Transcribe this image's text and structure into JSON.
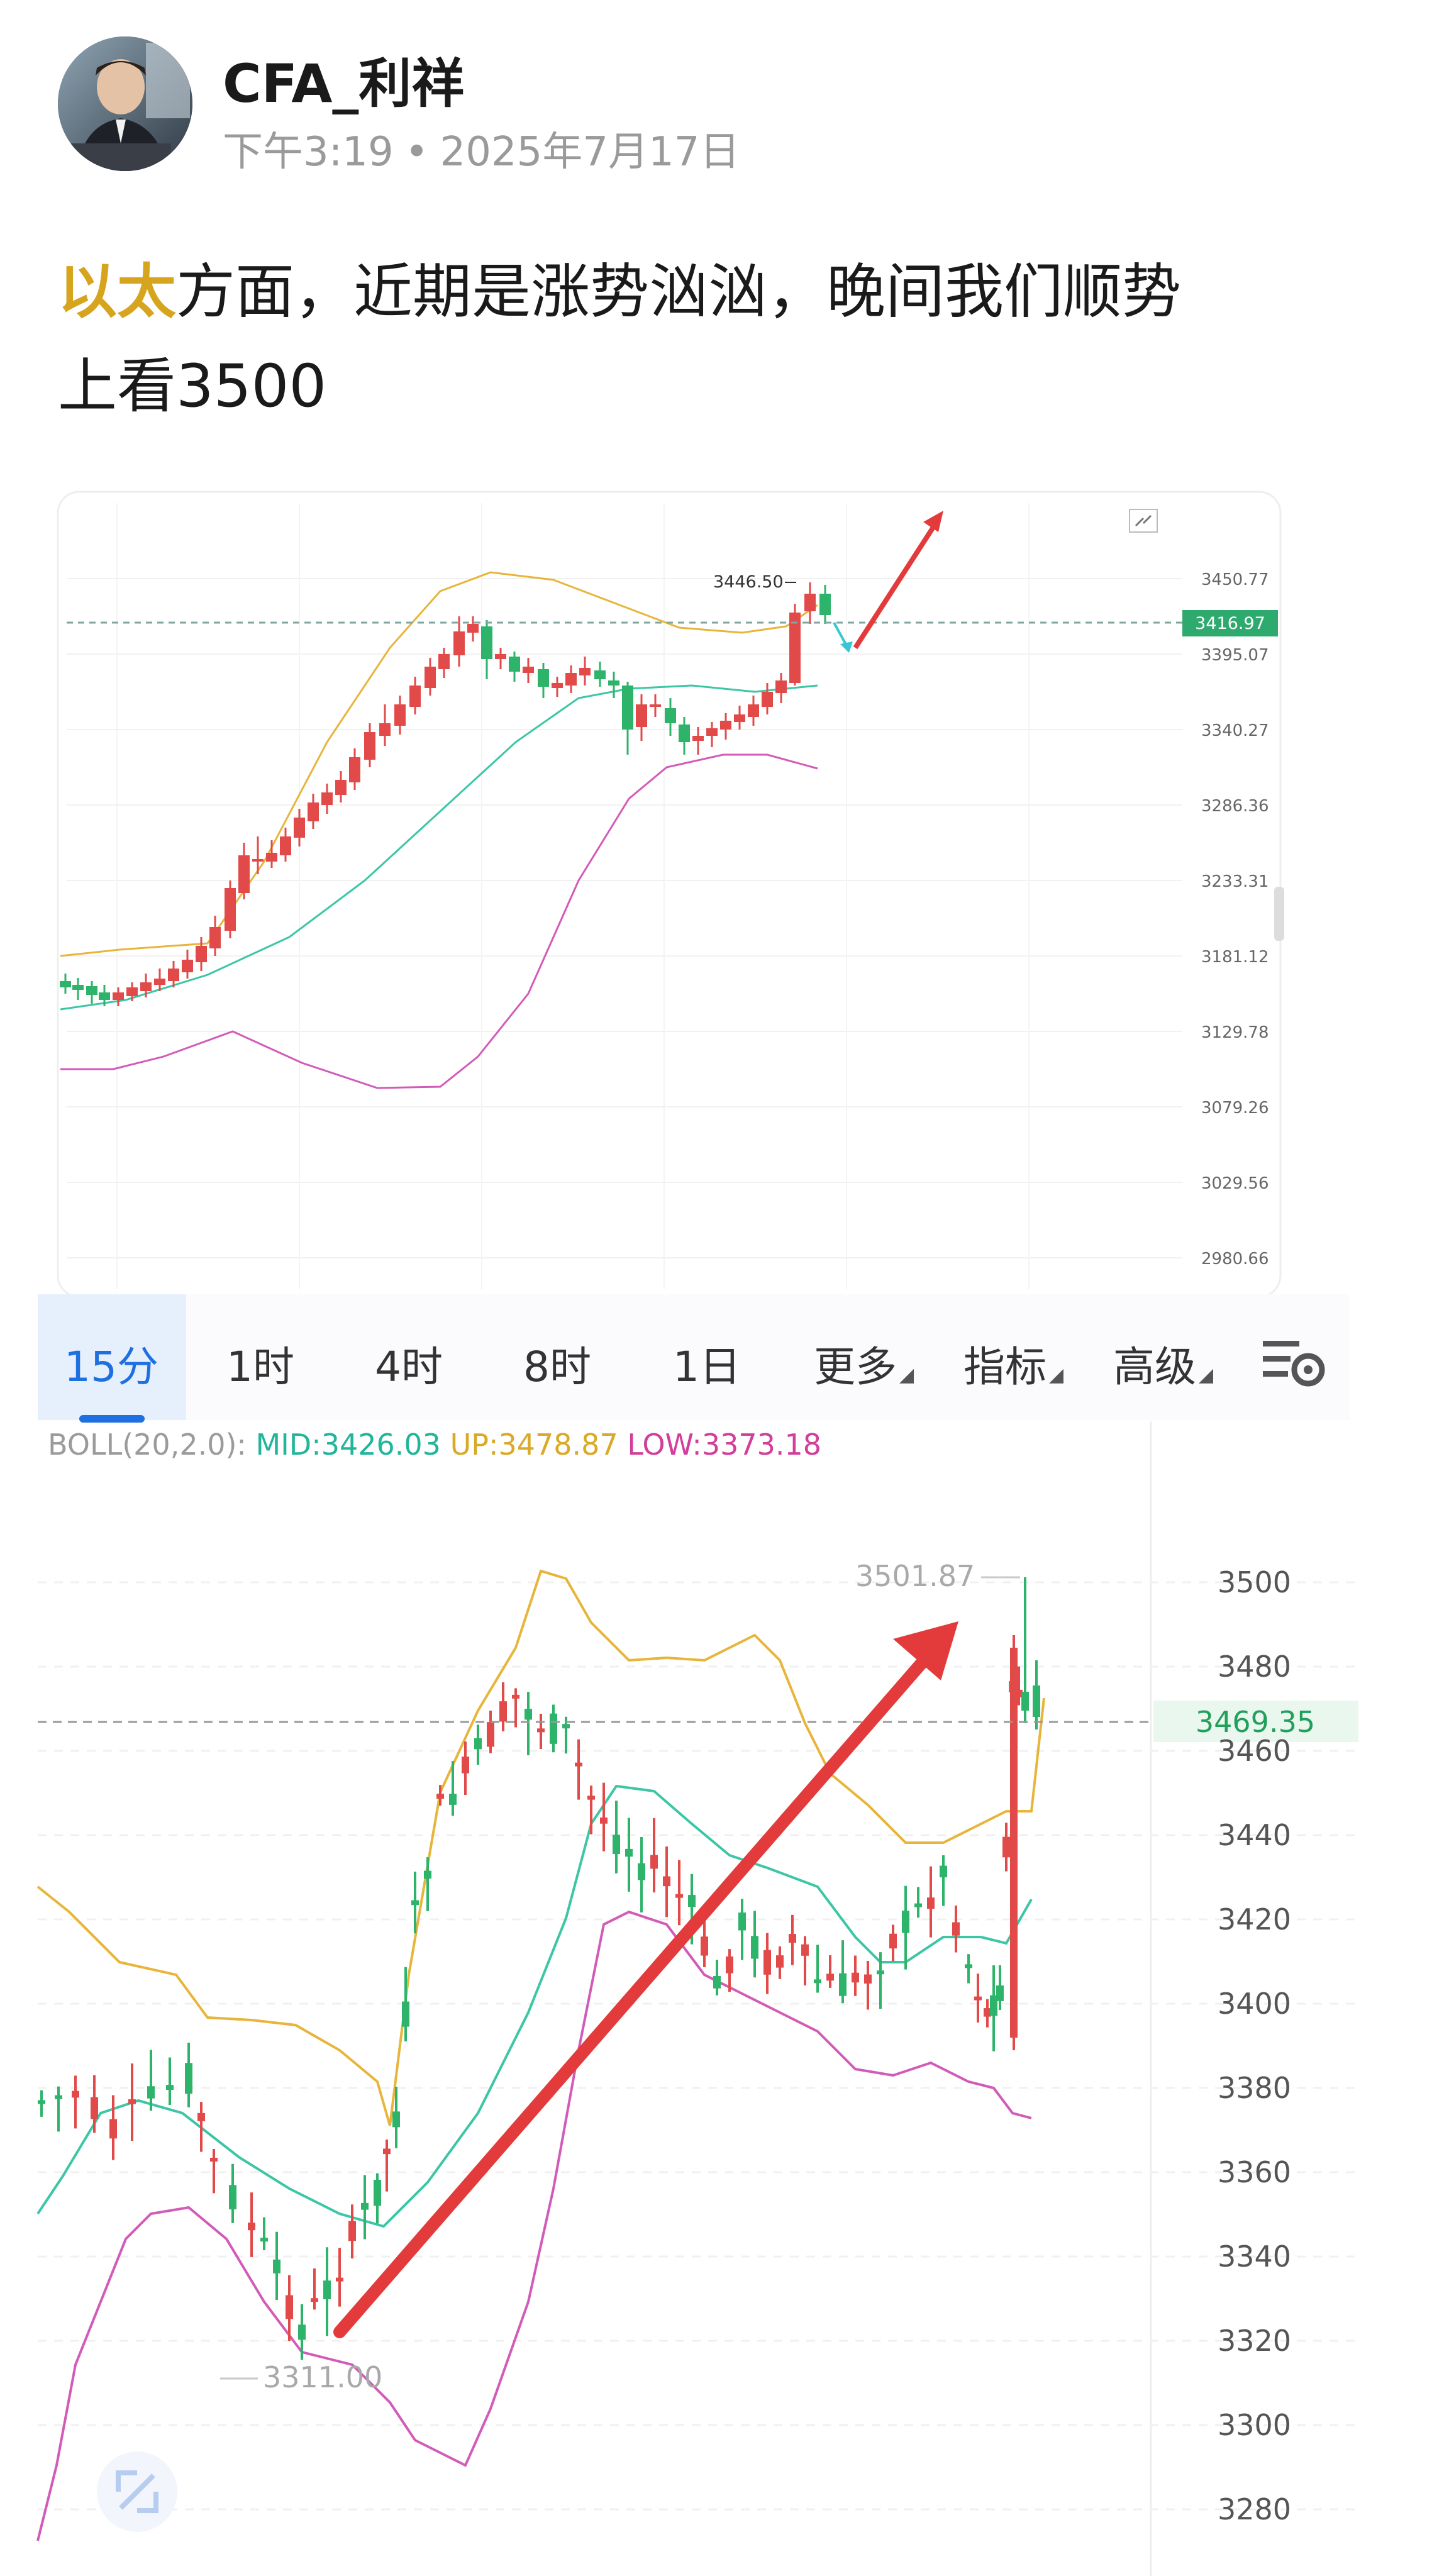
{
  "post": {
    "author": "CFA_利祥",
    "time": "下午3:19",
    "date": "2025年7月17日",
    "text_highlight": "以太",
    "text_rest_line1": "方面，近期是涨势汹汹，晚间我们顺势",
    "text_line2": "上看3500"
  },
  "colors": {
    "up": "#e24a4a",
    "down": "#2db36a",
    "mid": "#3cc6a5",
    "upper": "#e7b53a",
    "lower": "#d35bb8",
    "arrow": "#e33b3b",
    "highlight": "#d6a51d",
    "accent": "#1e6fe0"
  },
  "chart1": {
    "high_label": "3446.50",
    "price_tag": "3416.97",
    "y_ticks": [
      "3450.77",
      "3395.07",
      "3340.27",
      "3286.36",
      "3233.31",
      "3181.12",
      "3129.78",
      "3079.26",
      "3029.56",
      "2980.66"
    ],
    "expand_icon": "expand-icon"
  },
  "timebar": {
    "tabs": [
      "15分",
      "1时",
      "4时",
      "8时",
      "1日",
      "更多",
      "指标",
      "高级"
    ],
    "active": "15分",
    "settings_icon": "chart-settings-icon"
  },
  "chart2": {
    "indicator_label": "BOLL(20,2.0):",
    "mid": "MID:3426.03",
    "up": "UP:3478.87",
    "low": "LOW:3373.18",
    "high_label": "3501.87",
    "low_label": "3311.00",
    "price_tag": "3469.35",
    "y_ticks": [
      "3500",
      "3480",
      "3460",
      "3440",
      "3420",
      "3400",
      "3380",
      "3360",
      "3340",
      "3320",
      "3300",
      "3280"
    ],
    "fullscreen_icon": "fullscreen-icon"
  }
}
